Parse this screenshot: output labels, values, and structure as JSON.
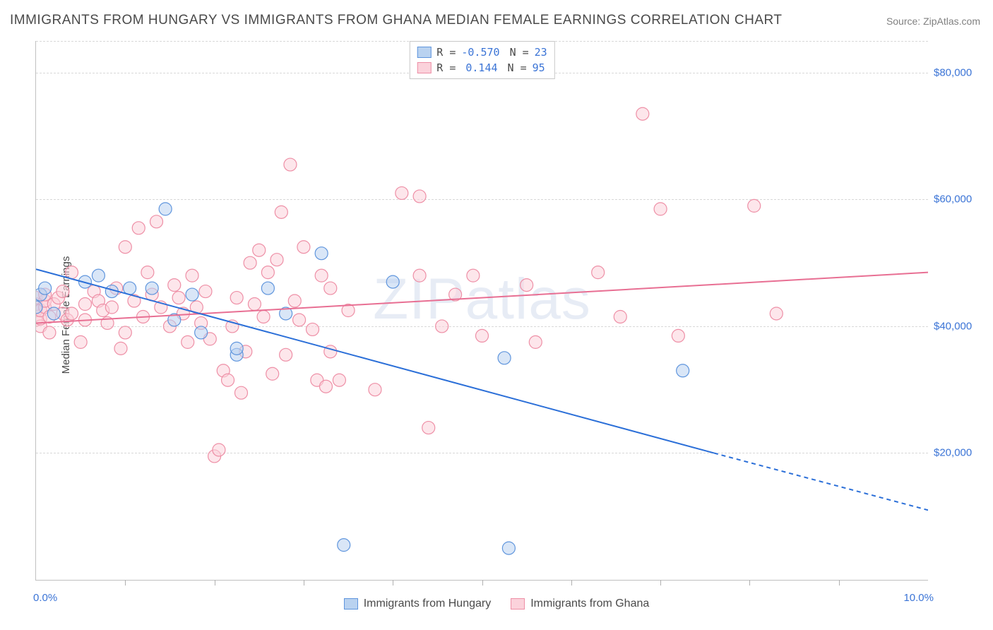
{
  "title": "IMMIGRANTS FROM HUNGARY VS IMMIGRANTS FROM GHANA MEDIAN FEMALE EARNINGS CORRELATION CHART",
  "source": "Source: ZipAtlas.com",
  "watermark": "ZIPatlas",
  "ylabel": "Median Female Earnings",
  "chart": {
    "type": "scatter",
    "background_color": "#ffffff",
    "grid_color": "#d8d8d8",
    "axis_color": "#c0c0c0",
    "tick_label_color": "#3b74d6",
    "text_color": "#4a4a4a",
    "xlim": [
      0,
      10
    ],
    "ylim": [
      0,
      85000
    ],
    "x_tick_positions": [
      1,
      2,
      3,
      4,
      5,
      6,
      7,
      8,
      9
    ],
    "x_start_label": "0.0%",
    "x_end_label": "10.0%",
    "y_grid": [
      20000,
      40000,
      60000,
      80000
    ],
    "y_tick_labels": [
      "$20,000",
      "$40,000",
      "$60,000",
      "$80,000"
    ],
    "marker_radius": 9,
    "marker_stroke_width": 1.2,
    "line_width": 2
  },
  "series": {
    "hungary": {
      "label": "Immigrants from Hungary",
      "fill": "#b9d2f0",
      "stroke": "#5f95dd",
      "line_color": "#2b6fd8",
      "R": "-0.570",
      "N": "23",
      "trend": {
        "x1": 0.0,
        "y1": 49000,
        "x2_solid": 7.6,
        "y2_solid": 20000,
        "x2_dash": 10.0,
        "y2_dash": 11000
      },
      "points": [
        [
          0.0,
          43000
        ],
        [
          0.05,
          45000
        ],
        [
          0.1,
          46000
        ],
        [
          0.2,
          42000
        ],
        [
          0.55,
          47000
        ],
        [
          0.7,
          48000
        ],
        [
          0.85,
          45500
        ],
        [
          1.05,
          46000
        ],
        [
          1.3,
          46000
        ],
        [
          1.45,
          58500
        ],
        [
          1.55,
          41000
        ],
        [
          1.75,
          45000
        ],
        [
          1.85,
          39000
        ],
        [
          2.25,
          35500
        ],
        [
          2.25,
          36500
        ],
        [
          2.6,
          46000
        ],
        [
          2.8,
          42000
        ],
        [
          3.2,
          51500
        ],
        [
          3.45,
          5500
        ],
        [
          4.0,
          47000
        ],
        [
          5.25,
          35000
        ],
        [
          5.3,
          5000
        ],
        [
          7.25,
          33000
        ]
      ]
    },
    "ghana": {
      "label": "Immigrants from Ghana",
      "fill": "#fbd2db",
      "stroke": "#ee8fa6",
      "line_color": "#e86f93",
      "R": "0.144",
      "N": "95",
      "trend": {
        "x1": 0.0,
        "y1": 40500,
        "x2": 10.0,
        "y2": 48500
      },
      "points": [
        [
          0.0,
          41000
        ],
        [
          0.0,
          42500
        ],
        [
          0.0,
          43500
        ],
        [
          0.0,
          44500
        ],
        [
          0.05,
          40000
        ],
        [
          0.05,
          41200
        ],
        [
          0.05,
          42500
        ],
        [
          0.1,
          43000
        ],
        [
          0.1,
          44000
        ],
        [
          0.1,
          45000
        ],
        [
          0.15,
          39000
        ],
        [
          0.15,
          41500
        ],
        [
          0.2,
          43500
        ],
        [
          0.25,
          44500
        ],
        [
          0.3,
          42000
        ],
        [
          0.3,
          45500
        ],
        [
          0.35,
          41000
        ],
        [
          0.4,
          42000
        ],
        [
          0.4,
          48500
        ],
        [
          0.5,
          37500
        ],
        [
          0.55,
          41000
        ],
        [
          0.55,
          43500
        ],
        [
          0.65,
          45500
        ],
        [
          0.7,
          44000
        ],
        [
          0.75,
          42500
        ],
        [
          0.8,
          40500
        ],
        [
          0.85,
          43000
        ],
        [
          0.9,
          46000
        ],
        [
          0.95,
          36500
        ],
        [
          1.0,
          39000
        ],
        [
          1.0,
          52500
        ],
        [
          1.1,
          44000
        ],
        [
          1.15,
          55500
        ],
        [
          1.2,
          41500
        ],
        [
          1.25,
          48500
        ],
        [
          1.3,
          45000
        ],
        [
          1.35,
          56500
        ],
        [
          1.4,
          43000
        ],
        [
          1.5,
          40000
        ],
        [
          1.55,
          46500
        ],
        [
          1.6,
          44500
        ],
        [
          1.65,
          42000
        ],
        [
          1.7,
          37500
        ],
        [
          1.75,
          48000
        ],
        [
          1.8,
          43000
        ],
        [
          1.85,
          40500
        ],
        [
          1.9,
          45500
        ],
        [
          1.95,
          38000
        ],
        [
          2.0,
          19500
        ],
        [
          2.05,
          20500
        ],
        [
          2.1,
          33000
        ],
        [
          2.15,
          31500
        ],
        [
          2.2,
          40000
        ],
        [
          2.25,
          44500
        ],
        [
          2.3,
          29500
        ],
        [
          2.35,
          36000
        ],
        [
          2.4,
          50000
        ],
        [
          2.45,
          43500
        ],
        [
          2.5,
          52000
        ],
        [
          2.55,
          41500
        ],
        [
          2.6,
          48500
        ],
        [
          2.65,
          32500
        ],
        [
          2.7,
          50500
        ],
        [
          2.75,
          58000
        ],
        [
          2.8,
          35500
        ],
        [
          2.85,
          65500
        ],
        [
          2.9,
          44000
        ],
        [
          2.95,
          41000
        ],
        [
          3.0,
          52500
        ],
        [
          3.1,
          39500
        ],
        [
          3.15,
          31500
        ],
        [
          3.2,
          48000
        ],
        [
          3.25,
          30500
        ],
        [
          3.3,
          36000
        ],
        [
          3.3,
          46000
        ],
        [
          3.4,
          31500
        ],
        [
          3.5,
          42500
        ],
        [
          3.8,
          30000
        ],
        [
          4.1,
          61000
        ],
        [
          4.3,
          48000
        ],
        [
          4.3,
          60500
        ],
        [
          4.4,
          24000
        ],
        [
          4.55,
          40000
        ],
        [
          4.7,
          45000
        ],
        [
          4.9,
          48000
        ],
        [
          5.0,
          38500
        ],
        [
          5.5,
          46500
        ],
        [
          5.6,
          37500
        ],
        [
          6.3,
          48500
        ],
        [
          6.55,
          41500
        ],
        [
          6.8,
          73500
        ],
        [
          7.0,
          58500
        ],
        [
          7.2,
          38500
        ],
        [
          8.05,
          59000
        ],
        [
          8.3,
          42000
        ]
      ]
    }
  },
  "legend_top": {
    "R_label": "R =",
    "N_label": "N ="
  }
}
